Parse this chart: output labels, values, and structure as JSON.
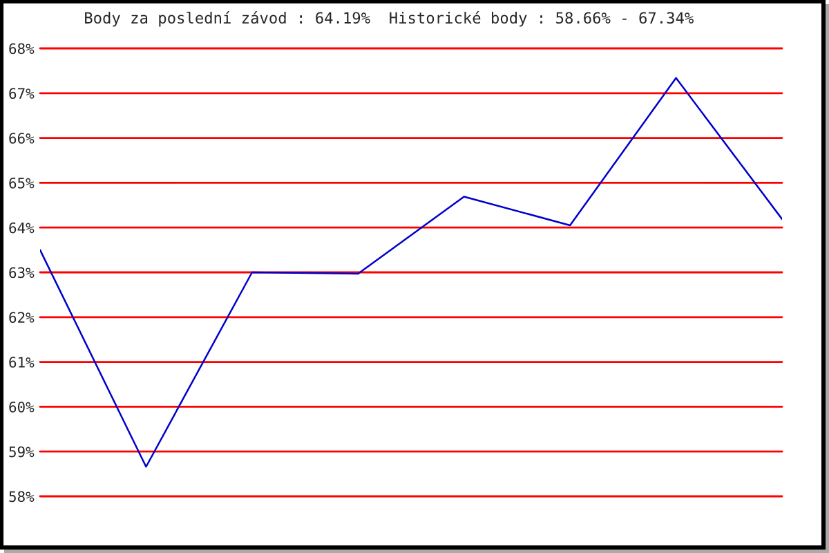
{
  "chart_data": {
    "type": "line",
    "title": "Body za poslední závod : 64.19%  Historické body : 58.66% - 67.34%",
    "categories": [
      null,
      null,
      null,
      null,
      null,
      null,
      null,
      null
    ],
    "series": [
      {
        "color": "#0000cc",
        "values": [
          63.5,
          58.66,
          63.0,
          62.97,
          64.69,
          64.05,
          67.34,
          64.19
        ]
      }
    ],
    "ylim": [
      58,
      68
    ],
    "yticks": [
      {
        "value": 58,
        "label": "58%"
      },
      {
        "value": 59,
        "label": "59%"
      },
      {
        "value": 60,
        "label": "60%"
      },
      {
        "value": 61,
        "label": "61%"
      },
      {
        "value": 62,
        "label": "62%"
      },
      {
        "value": 63,
        "label": "63%"
      },
      {
        "value": 64,
        "label": "64%"
      },
      {
        "value": 65,
        "label": "65%"
      },
      {
        "value": 66,
        "label": "66%"
      },
      {
        "value": 67,
        "label": "67%"
      },
      {
        "value": 68,
        "label": "68%"
      }
    ],
    "grid": "y",
    "legend": false,
    "tick_labels": "y",
    "marker": "none",
    "line_style": "solid"
  }
}
